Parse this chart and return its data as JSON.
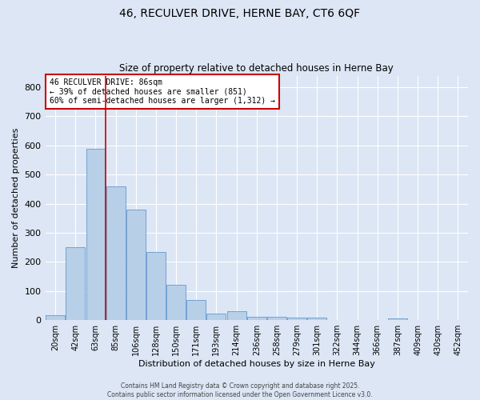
{
  "title_line1": "46, RECULVER DRIVE, HERNE BAY, CT6 6QF",
  "title_line2": "Size of property relative to detached houses in Herne Bay",
  "xlabel": "Distribution of detached houses by size in Herne Bay",
  "ylabel": "Number of detached properties",
  "bar_color": "#b8cfe8",
  "bar_edge_color": "#6699cc",
  "background_color": "#dce6f5",
  "grid_color": "#ffffff",
  "categories": [
    "20sqm",
    "42sqm",
    "63sqm",
    "85sqm",
    "106sqm",
    "128sqm",
    "150sqm",
    "171sqm",
    "193sqm",
    "214sqm",
    "236sqm",
    "258sqm",
    "279sqm",
    "301sqm",
    "322sqm",
    "344sqm",
    "366sqm",
    "387sqm",
    "409sqm",
    "430sqm",
    "452sqm"
  ],
  "values": [
    18,
    250,
    590,
    460,
    380,
    235,
    122,
    68,
    22,
    30,
    12,
    12,
    8,
    10,
    0,
    0,
    0,
    7,
    0,
    0,
    0
  ],
  "red_line_index": 3,
  "annotation_text": "46 RECULVER DRIVE: 86sqm\n← 39% of detached houses are smaller (851)\n60% of semi-detached houses are larger (1,312) →",
  "annotation_box_color": "#ffffff",
  "annotation_edge_color": "#cc0000",
  "red_line_color": "#cc0000",
  "ylim": [
    0,
    840
  ],
  "yticks": [
    0,
    100,
    200,
    300,
    400,
    500,
    600,
    700,
    800
  ],
  "footnote1": "Contains HM Land Registry data © Crown copyright and database right 2025.",
  "footnote2": "Contains public sector information licensed under the Open Government Licence v3.0."
}
